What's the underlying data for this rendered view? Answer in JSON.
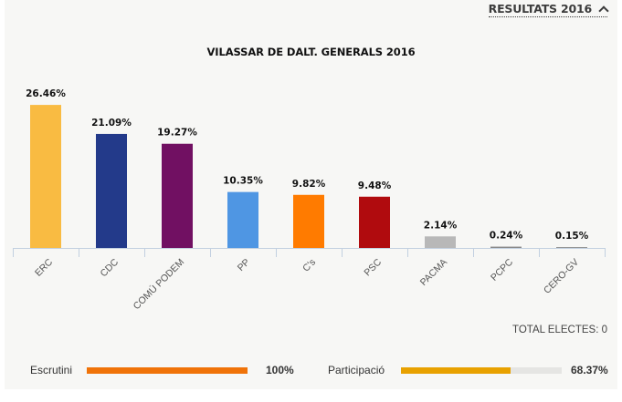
{
  "header": {
    "toggle_label": "RESULTATS 2016",
    "toggle_icon": "chevron-up-icon"
  },
  "chart_data": {
    "type": "bar",
    "title": "VILASSAR DE DALT. GENERALS 2016",
    "xlabel": "",
    "ylabel": "",
    "ylim": [
      0,
      30
    ],
    "grid": false,
    "categories": [
      "ERC",
      "CDC",
      "COMÚ PODEM",
      "PP",
      "C's",
      "PSC",
      "PACMA",
      "PCPC",
      "CERO-GV"
    ],
    "values": [
      26.46,
      21.09,
      19.27,
      10.35,
      9.82,
      9.48,
      2.14,
      0.24,
      0.15
    ],
    "data_labels": [
      "26.46%",
      "21.09%",
      "19.27%",
      "10.35%",
      "9.82%",
      "9.48%",
      "2.14%",
      "0.24%",
      "0.15%"
    ],
    "colors": [
      "#f9bb42",
      "#233a8a",
      "#711062",
      "#4f96e3",
      "#ff7b00",
      "#b00b0e",
      "#b8b8b8",
      "#8a8a8a",
      "#8a8a8a"
    ]
  },
  "summary": {
    "total_label": "TOTAL ELECTES: 0"
  },
  "progress": {
    "escrutini": {
      "label": "Escrutini",
      "value_text": "100%",
      "fraction": 1.0,
      "color": "#f07309"
    },
    "participacio": {
      "label": "Participació",
      "value_text": "68.37%",
      "fraction": 0.6837,
      "color": "#e8a100"
    }
  }
}
